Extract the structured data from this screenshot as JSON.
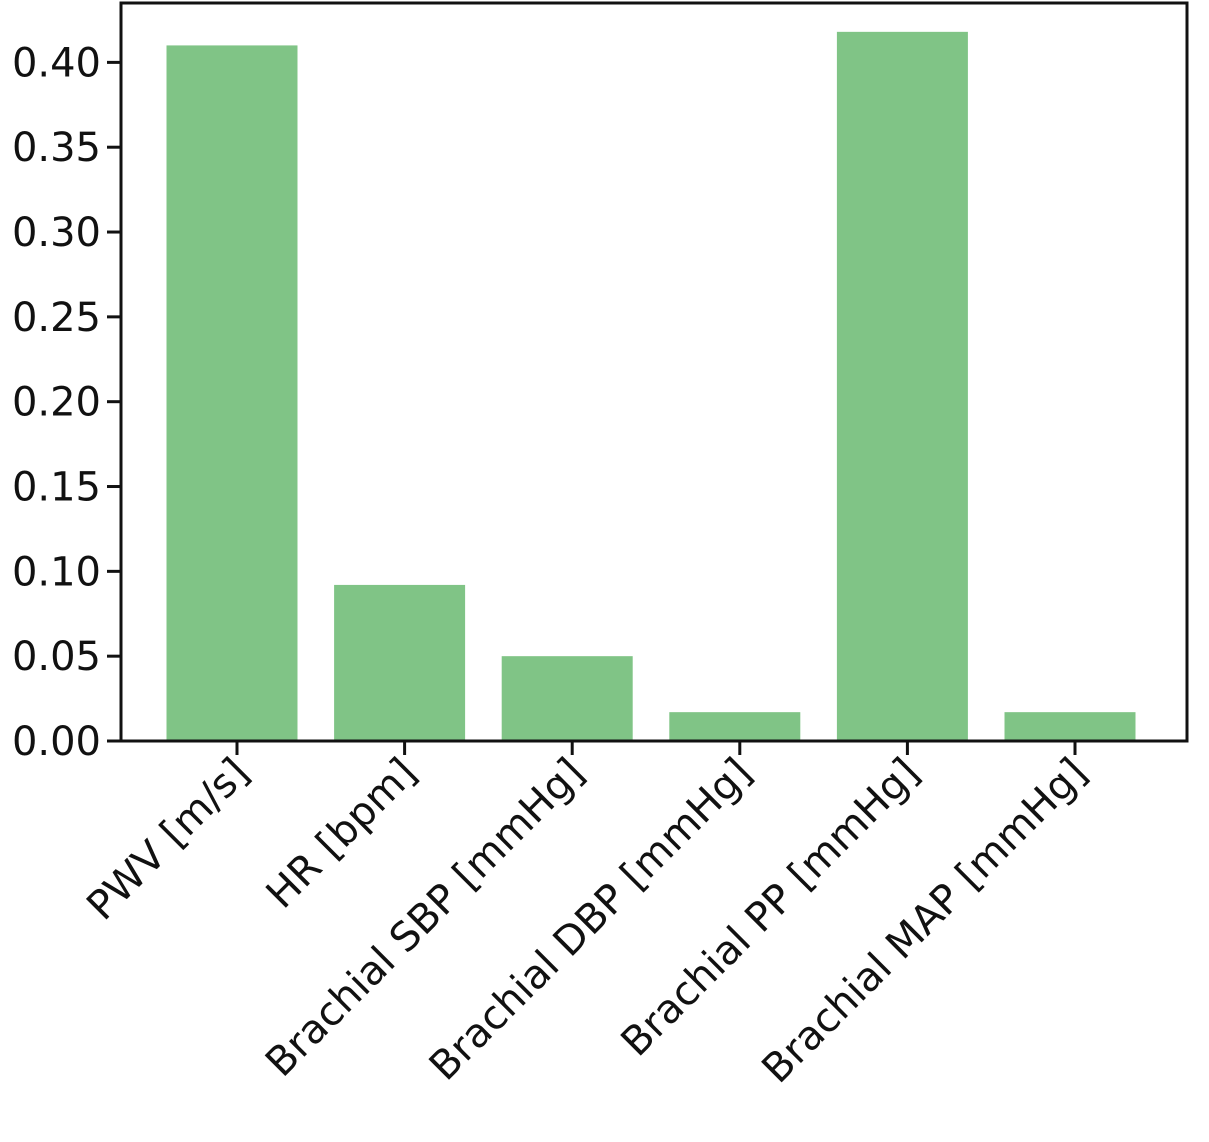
{
  "chart_data": {
    "type": "bar",
    "title": "",
    "xlabel": "",
    "ylabel": "",
    "categories": [
      "PWV [m/s]",
      "HR [bpm]",
      "Brachial SBP [mmHg]",
      "Brachial DBP [mmHg]",
      "Brachial PP [mmHg]",
      "Brachial MAP [mmHg]"
    ],
    "values": [
      0.41,
      0.092,
      0.05,
      0.017,
      0.418,
      0.017
    ],
    "ylim": [
      0.0,
      0.435
    ],
    "yticks": [
      0.0,
      0.05,
      0.1,
      0.15,
      0.2,
      0.25,
      0.3,
      0.35,
      0.4
    ],
    "ytick_labels": [
      "0.00",
      "0.05",
      "0.10",
      "0.15",
      "0.20",
      "0.25",
      "0.30",
      "0.35",
      "0.40"
    ],
    "bar_color": "#80c486",
    "axis_color": "#111111",
    "grid": false,
    "legend": "none"
  }
}
